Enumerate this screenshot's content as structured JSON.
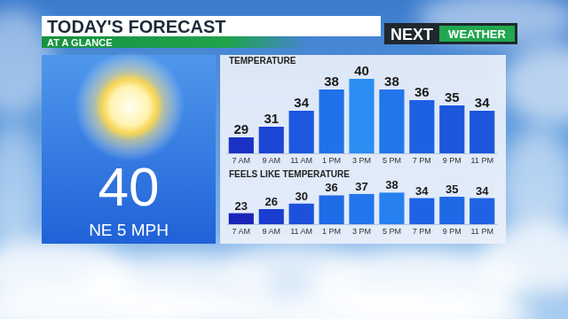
{
  "header": {
    "title": "TODAY'S FORECAST",
    "subtitle": "AT A GLANCE",
    "logo": {
      "brand": "NEXT",
      "product": "WEATHER"
    }
  },
  "current": {
    "temperature": 40,
    "wind": "NE 5 MPH"
  },
  "chart_data": [
    {
      "type": "bar",
      "title": "TEMPERATURE",
      "categories": [
        "7 AM",
        "9 AM",
        "11 AM",
        "1 PM",
        "3 PM",
        "5 PM",
        "7 PM",
        "9 PM",
        "11 PM"
      ],
      "values": [
        29,
        31,
        34,
        38,
        40,
        38,
        36,
        35,
        34
      ],
      "colors": [
        "#1b31c6",
        "#1c46d6",
        "#1d58e0",
        "#2171ea",
        "#2b8ef2",
        "#2276ec",
        "#1d60e2",
        "#1b56dc",
        "#1b56dc"
      ],
      "ylim": [
        26,
        41.5
      ],
      "data_labels": true,
      "tick_labels": "x"
    },
    {
      "type": "bar",
      "title": "FEELS LIKE TEMPERATURE",
      "categories": [
        "7 AM",
        "9 AM",
        "11 AM",
        "1 PM",
        "3 PM",
        "5 PM",
        "7 PM",
        "9 PM",
        "11 PM"
      ],
      "values": [
        23,
        26,
        30,
        36,
        37,
        38,
        34,
        35,
        34
      ],
      "colors": [
        "#1a25b8",
        "#1b3dd0",
        "#1d51dc",
        "#1f6be8",
        "#2275ec",
        "#2680f0",
        "#1f63e4",
        "#1f69e6",
        "#1f63e4"
      ],
      "ylim": [
        15,
        46
      ],
      "data_labels": true,
      "tick_labels": "x"
    }
  ]
}
